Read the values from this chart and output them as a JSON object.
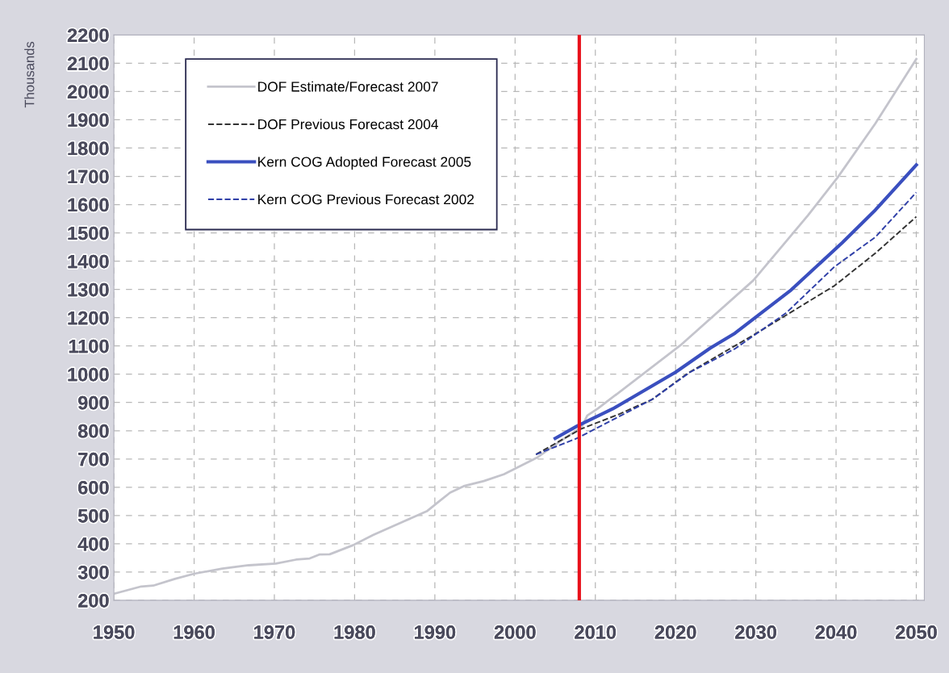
{
  "chart_data": {
    "type": "line",
    "ylabel": "Thousands",
    "xlim": [
      1950,
      2051
    ],
    "xticks": [
      1950,
      1960,
      1970,
      1980,
      1990,
      2000,
      2010,
      2020,
      2030,
      2040,
      2050
    ],
    "ylim": [
      200,
      2200
    ],
    "yticks": [
      200,
      300,
      400,
      500,
      600,
      700,
      800,
      900,
      1000,
      1100,
      1200,
      1300,
      1400,
      1500,
      1600,
      1700,
      1800,
      1900,
      2000,
      2100,
      2200
    ],
    "grid": true,
    "legend": "top left",
    "ref_lines": [
      {
        "axis": "x",
        "value": 2008,
        "color": "#e8101a",
        "line_style": "solid"
      }
    ],
    "series": [
      {
        "name": "DOF Estimate/Forecast 2007",
        "color": "#c4c4cc",
        "line_style": "solid",
        "x": [
          1950,
          1953.4,
          1954.9,
          1957.6,
          1960,
          1963.5,
          1966.8,
          1970.2,
          1972.7,
          1974.4,
          1975.6,
          1976.9,
          1979.8,
          1982.3,
          1986.1,
          1989,
          1990.3,
          1991.9,
          1993.6,
          1996.1,
          1998.6,
          2000.3,
          2002.8,
          2005.8,
          2008.3,
          2009,
          2010.3,
          2020.6,
          2029.7,
          2036.5,
          2040.2,
          2044.9,
          2050
        ],
        "values": [
          223,
          249,
          252,
          276,
          294,
          312,
          324,
          330,
          344,
          348,
          362,
          363,
          395,
          431,
          479,
          515,
          545,
          581,
          604,
          622,
          646,
          670,
          706,
          766,
          813,
          854,
          878,
          1102,
          1332,
          1562,
          1696,
          1887,
          2115
        ]
      },
      {
        "name": "DOF Previous Forecast 2004",
        "color": "#333333",
        "line_style": "dashed",
        "x": [
          2002.6,
          2008.2,
          2013,
          2017.1,
          2021.5,
          2029.8,
          2039.8,
          2044.9,
          2050
        ],
        "values": [
          716,
          806,
          859,
          911,
          1003,
          1140,
          1313,
          1428,
          1557
        ]
      },
      {
        "name": "Kern COG Adopted Forecast 2005",
        "color": "#3a4fbf",
        "line_style": "solid",
        "x": [
          2005,
          2007.7,
          2012.2,
          2020,
          2024.3,
          2027.4,
          2034.4,
          2040.8,
          2044.9,
          2050
        ],
        "values": [
          773,
          816,
          878,
          1007,
          1092,
          1145,
          1298,
          1466,
          1581,
          1740
        ]
      },
      {
        "name": "Kern COG Previous Forecast 2002",
        "color": "#3040a8",
        "line_style": "dashed",
        "x": [
          2002.6,
          2007.7,
          2017.1,
          2021.8,
          2027.4,
          2033.8,
          2039.8,
          2044.9,
          2050
        ],
        "values": [
          716,
          773,
          911,
          1007,
          1090,
          1217,
          1380,
          1485,
          1643
        ]
      }
    ]
  }
}
